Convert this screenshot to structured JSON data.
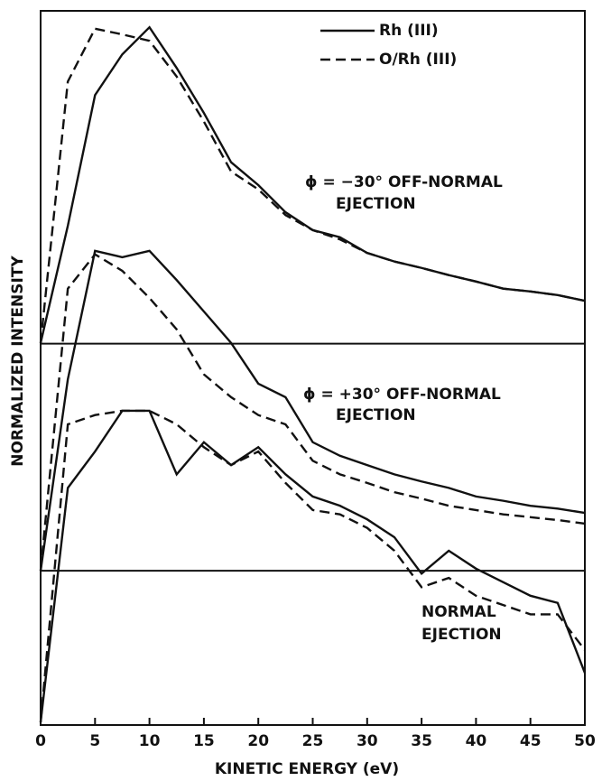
{
  "chart_data": {
    "type": "line",
    "x_label": "KINETIC ENERGY (eV)",
    "y_label": "NORMALIZED INTENSITY",
    "x": [
      0,
      2.5,
      5,
      7.5,
      10,
      12.5,
      15,
      17.5,
      20,
      22.5,
      25,
      27.5,
      30,
      32.5,
      35,
      37.5,
      40,
      42.5,
      45,
      47.5,
      50
    ],
    "series": [
      {
        "name": "Rh (III)",
        "dashed": false,
        "color": "#111111",
        "values": [
          53.5,
          69.9,
          88.2,
          93.9,
          97.7,
          92.0,
          85.7,
          78.8,
          75.6,
          71.8,
          69.3,
          68.3,
          66.1,
          64.9,
          64.0,
          63.0,
          62.1,
          61.1,
          60.7,
          60.2,
          59.4
        ]
      },
      {
        "name": "O/Rh (III)",
        "dashed": true,
        "color": "#111111",
        "values": [
          53.5,
          90.1,
          97.5,
          96.7,
          95.8,
          90.8,
          84.5,
          77.5,
          75.0,
          71.4,
          69.3,
          68.0,
          66.1,
          64.9,
          64.0,
          63.0,
          62.1,
          61.1,
          60.7,
          60.2,
          59.4
        ]
      },
      {
        "name": "Rh (III)",
        "dashed": false,
        "color": "#111111",
        "values": [
          21.6,
          48.4,
          66.4,
          65.5,
          66.4,
          62.3,
          57.9,
          53.5,
          47.8,
          45.9,
          39.6,
          37.7,
          36.4,
          35.1,
          34.1,
          33.2,
          32.0,
          31.4,
          30.7,
          30.3,
          29.7
        ]
      },
      {
        "name": "O/Rh (III)",
        "dashed": true,
        "color": "#111111",
        "values": [
          21.6,
          61.1,
          65.9,
          63.6,
          59.8,
          55.4,
          49.1,
          45.9,
          43.4,
          42.1,
          37.0,
          35.1,
          33.9,
          32.6,
          31.7,
          30.7,
          30.1,
          29.5,
          29.1,
          28.7,
          28.2
        ]
      },
      {
        "name": "Rh (III)",
        "dashed": false,
        "color": "#111111",
        "values": [
          0.4,
          33.2,
          38.3,
          44.0,
          44.0,
          35.1,
          39.6,
          36.4,
          38.9,
          35.1,
          32.0,
          30.7,
          28.8,
          26.3,
          21.2,
          24.4,
          21.9,
          20.0,
          18.1,
          17.1,
          7.3
        ]
      },
      {
        "name": "O/Rh (III)",
        "dashed": true,
        "color": "#111111",
        "values": [
          0.4,
          42.1,
          43.4,
          44.0,
          44.0,
          42.1,
          38.9,
          36.4,
          38.3,
          33.9,
          30.1,
          29.5,
          27.6,
          24.4,
          19.3,
          20.6,
          18.1,
          16.8,
          15.5,
          15.5,
          10.5
        ]
      }
    ],
    "baselines": [
      53.4,
      21.6
    ],
    "annotations": [
      {
        "lines": [
          "ϕ = −30° OFF-NORMAL",
          "EJECTION"
        ]
      },
      {
        "lines": [
          "ϕ = +30° OFF-NORMAL",
          "EJECTION"
        ]
      },
      {
        "lines": [
          "NORMAL",
          "EJECTION"
        ]
      }
    ],
    "xlim": [
      0,
      50
    ],
    "ylim": [
      0,
      100
    ],
    "xticks": [
      0,
      5,
      10,
      15,
      20,
      25,
      30,
      35,
      40,
      45,
      50
    ]
  }
}
